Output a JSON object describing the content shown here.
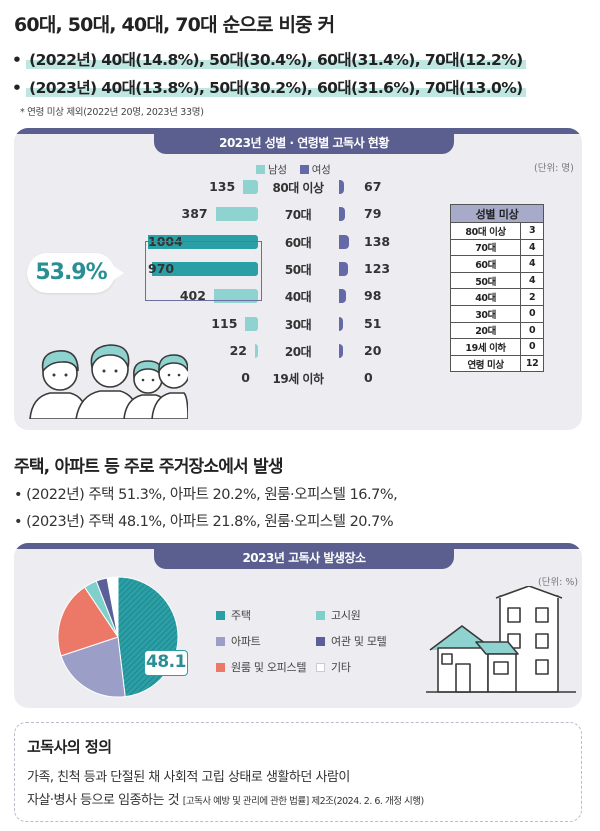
{
  "headline": {
    "title": "60대, 50대, 40대, 70대 순으로 비중 커",
    "lines": [
      "(2022년) 40대(14.8%), 50대(30.4%), 60대(31.4%), 70대(12.2%)",
      "(2023년) 40대(13.8%), 50대(30.2%), 60대(31.6%), 70대(13.0%)"
    ],
    "bullet": "•",
    "note": "* 연령 미상 제외(2022년 20명, 2023년 33명)"
  },
  "section1": {
    "header": "2023년 성별 · 연령별 고독사 현황",
    "unit": "(단위: 명)",
    "callout": "53.9%",
    "colors": {
      "male": "#2a9fa6",
      "male_light": "#8fd3d0",
      "female": "#6669a8"
    },
    "chart_data": {
      "type": "bar",
      "title": "2023년 성별 · 연령별 고독사 현황",
      "unit": "명",
      "categories": [
        "80대 이상",
        "70대",
        "60대",
        "50대",
        "40대",
        "30대",
        "20대",
        "19세 이하"
      ],
      "series": [
        {
          "name": "남성",
          "values": [
            135,
            387,
            1004,
            970,
            402,
            115,
            22,
            0
          ]
        },
        {
          "name": "여성",
          "values": [
            67,
            79,
            138,
            123,
            98,
            51,
            20,
            0
          ]
        }
      ],
      "legend": [
        "남성",
        "여성"
      ],
      "legend_position": "top-center"
    },
    "gender_unknown": {
      "title": "성별 미상",
      "rows": [
        {
          "age": "80대 이상",
          "count": "3"
        },
        {
          "age": "70대",
          "count": "4"
        },
        {
          "age": "60대",
          "count": "4"
        },
        {
          "age": "50대",
          "count": "4"
        },
        {
          "age": "40대",
          "count": "2"
        },
        {
          "age": "30대",
          "count": "0"
        },
        {
          "age": "20대",
          "count": "0"
        },
        {
          "age": "19세 이하",
          "count": "0"
        },
        {
          "age": "연령 미상",
          "count": "12"
        }
      ]
    }
  },
  "section2": {
    "title": "주택, 아파트 등 주로 주거장소에서 발생",
    "bullet": "•",
    "lines": [
      "(2022년) 주택 51.3%, 아파트 20.2%, 원룸·오피스텔 16.7%,",
      "(2023년) 주택 48.1%, 아파트 21.8%, 원룸·오피스텔 20.7%"
    ],
    "header": "2023년 고독사 발생장소",
    "unit": "(단위: %)",
    "pie_label": "48.1",
    "chart_data": {
      "type": "pie",
      "title": "2023년 고독사 발생장소",
      "unit": "%",
      "slices": [
        {
          "name": "주택",
          "value": 48.1,
          "color": "#2a9fa6"
        },
        {
          "name": "아파트",
          "value": 21.8,
          "color": "#9b9ec6"
        },
        {
          "name": "원룸 및 오피스텔",
          "value": 20.7,
          "color": "#ec7868"
        },
        {
          "name": "고시원",
          "value": 3.5,
          "color": "#7fcfcb"
        },
        {
          "name": "여관 및 모텔",
          "value": 3.0,
          "color": "#5b5f99"
        },
        {
          "name": "기타",
          "value": 2.9,
          "color": "#ffffff"
        }
      ],
      "legend": [
        "주택",
        "고시원",
        "아파트",
        "여관 및 모텔",
        "원룸 및 오피스텔",
        "기타"
      ],
      "highlight_label": "48.1"
    }
  },
  "definition": {
    "title": "고독사의 정의",
    "line1": "가족, 친척 등과 단절된 채 사회적 고립 상태로 생활하던 사람이",
    "line2": "자살·병사 등으로 임종하는 것",
    "law": "[고독사 예방 및 관리에 관한 법률] 제2조(2024. 2. 6. 개정 시행)"
  }
}
